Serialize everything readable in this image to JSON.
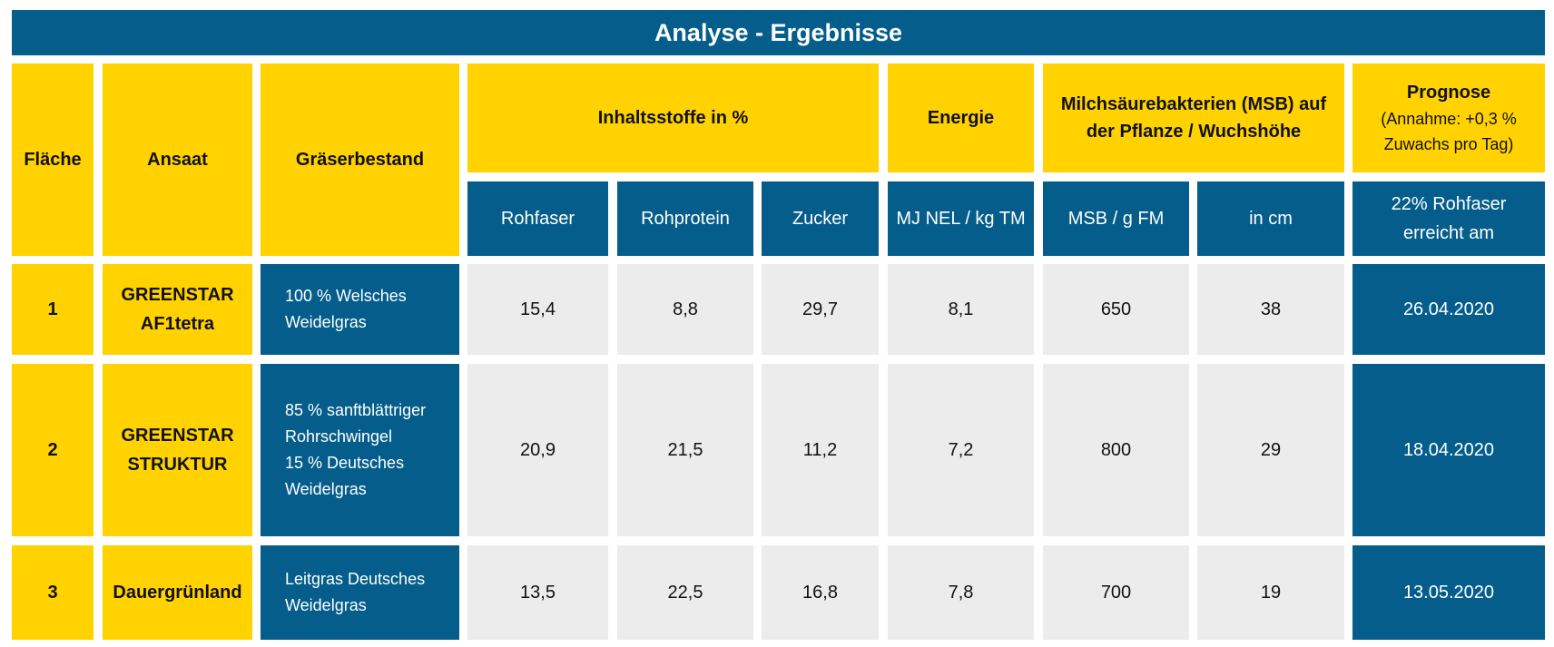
{
  "title": "Analyse - Ergebnisse",
  "colors": {
    "blue": "#045d8b",
    "yellow": "#ffd200",
    "gray": "#ececec"
  },
  "header": {
    "flaeche": "Fläche",
    "ansaat": "Ansaat",
    "graeserbestand": "Gräserbestand",
    "inhaltsstoffe": "Inhaltsstoffe in %",
    "energie": "Energie",
    "msb_line1": "Milchsäurebakterien (MSB) auf",
    "msb_line2": "der Pflanze / Wuchshöhe",
    "prognose_title": "Prognose",
    "prognose_line1": "(Annahme: +0,3 %",
    "prognose_line2": "Zuwachs pro Tag)",
    "sub": {
      "rohfaser": "Rohfaser",
      "rohprotein": "Rohprotein",
      "zucker": "Zucker",
      "energie_unit": "MJ NEL / kg TM",
      "msb_unit": "MSB / g FM",
      "hoehe_unit": "in cm",
      "prognose_line1": "22% Rohfaser",
      "prognose_line2": "erreicht am"
    }
  },
  "rows": [
    {
      "flaeche": "1",
      "ansaat": [
        "GREENSTAR",
        "AF1tetra"
      ],
      "graeser": [
        "100 % Welsches",
        "Weidelgras"
      ],
      "rohfaser": "15,4",
      "rohprotein": "8,8",
      "zucker": "29,7",
      "energie": "8,1",
      "msb": "650",
      "hoehe": "38",
      "datum": "26.04.2020"
    },
    {
      "flaeche": "2",
      "ansaat": [
        "GREENSTAR",
        "STRUKTUR"
      ],
      "graeser": [
        "85 % sanftblättriger",
        "Rohrschwingel",
        "15 % Deutsches",
        "Weidelgras"
      ],
      "rohfaser": "20,9",
      "rohprotein": "21,5",
      "zucker": "11,2",
      "energie": "7,2",
      "msb": "800",
      "hoehe": "29",
      "datum": "18.04.2020"
    },
    {
      "flaeche": "3",
      "ansaat": [
        "Dauergrünland"
      ],
      "graeser": [
        "Leitgras Deutsches",
        "Weidelgras"
      ],
      "rohfaser": "13,5",
      "rohprotein": "22,5",
      "zucker": "16,8",
      "energie": "7,8",
      "msb": "700",
      "hoehe": "19",
      "datum": "13.05.2020"
    }
  ]
}
